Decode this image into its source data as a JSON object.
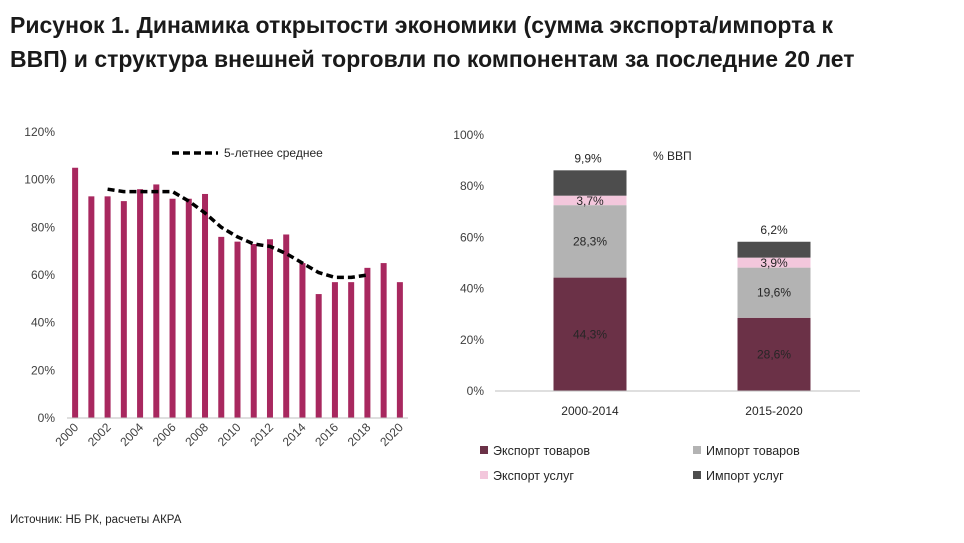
{
  "title_line1": "Рисунок 1. Динамика открытости экономики (сумма экспорта/импорта к",
  "title_line2": "ВВП) и структура внешней торговли по компонентам за последние 20 лет",
  "source": "Источник: НБ РК, расчеты АКРА",
  "colors": {
    "bar": "#a8285f",
    "avg_line": "#000000",
    "export_goods": "#6b3147",
    "import_goods": "#b3b3b3",
    "export_services": "#f3c7dc",
    "import_services": "#4d4d4d"
  },
  "chart_data": [
    {
      "type": "bar",
      "years": [
        "2000",
        "2001",
        "2002",
        "2003",
        "2004",
        "2005",
        "2006",
        "2007",
        "2008",
        "2009",
        "2010",
        "2011",
        "2012",
        "2013",
        "2014",
        "2015",
        "2016",
        "2017",
        "2018",
        "2019",
        "2020"
      ],
      "x_tick_labels": [
        "2000",
        "2002",
        "2004",
        "2006",
        "2008",
        "2010",
        "2012",
        "2014",
        "2016",
        "2018",
        "2020"
      ],
      "values": [
        105,
        93,
        93,
        91,
        96,
        98,
        92,
        92,
        94,
        76,
        74,
        73,
        75,
        77,
        65,
        52,
        57,
        57,
        63,
        65,
        57
      ],
      "y_tick_labels": [
        "0%",
        "20%",
        "40%",
        "60%",
        "80%",
        "100%",
        "120%"
      ],
      "ylim": [
        0,
        120
      ],
      "grid": false,
      "line_series": {
        "name": "5-летнее среднее",
        "x": [
          "2002",
          "2003",
          "2004",
          "2005",
          "2006",
          "2007",
          "2008",
          "2009",
          "2010",
          "2011",
          "2012",
          "2013",
          "2014",
          "2015",
          "2016",
          "2017",
          "2018"
        ],
        "values": [
          96,
          95,
          95,
          95,
          95,
          91,
          86,
          80,
          76,
          73,
          72,
          69,
          65,
          61,
          59,
          59,
          60
        ]
      }
    },
    {
      "type": "bar",
      "stacked": true,
      "categories": [
        "2000-2014",
        "2015-2020"
      ],
      "series": [
        {
          "name": "Экспорт товаров",
          "values": [
            44.3,
            28.6
          ],
          "labels": [
            "44,3%",
            "28,6%"
          ]
        },
        {
          "name": "Импорт товаров",
          "values": [
            28.3,
            19.6
          ],
          "labels": [
            "28,3%",
            "19,6%"
          ]
        },
        {
          "name": "Экспорт услуг",
          "values": [
            3.7,
            3.9
          ],
          "labels": [
            "3,7%",
            "3,9%"
          ]
        },
        {
          "name": "Импорт услуг",
          "values": [
            9.9,
            6.2
          ],
          "labels": [
            "9,9%",
            "6,2%"
          ]
        }
      ],
      "y_tick_labels": [
        "0%",
        "20%",
        "40%",
        "60%",
        "80%",
        "100%"
      ],
      "ylim": [
        0,
        100
      ],
      "annotation": "% ВВП",
      "grid": false,
      "legend_position": "bottom"
    }
  ]
}
